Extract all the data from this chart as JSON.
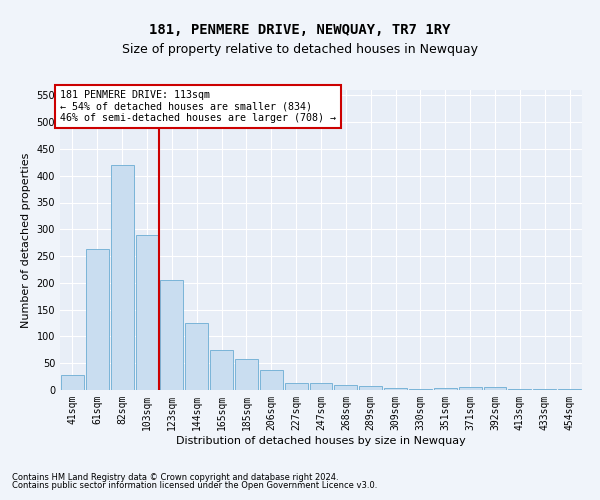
{
  "title": "181, PENMERE DRIVE, NEWQUAY, TR7 1RY",
  "subtitle": "Size of property relative to detached houses in Newquay",
  "xlabel": "Distribution of detached houses by size in Newquay",
  "ylabel": "Number of detached properties",
  "footnote1": "Contains HM Land Registry data © Crown copyright and database right 2024.",
  "footnote2": "Contains public sector information licensed under the Open Government Licence v3.0.",
  "categories": [
    "41sqm",
    "61sqm",
    "82sqm",
    "103sqm",
    "123sqm",
    "144sqm",
    "165sqm",
    "185sqm",
    "206sqm",
    "227sqm",
    "247sqm",
    "268sqm",
    "289sqm",
    "309sqm",
    "330sqm",
    "351sqm",
    "371sqm",
    "392sqm",
    "413sqm",
    "433sqm",
    "454sqm"
  ],
  "values": [
    28,
    263,
    420,
    290,
    206,
    125,
    75,
    58,
    37,
    13,
    13,
    9,
    7,
    4,
    2,
    4,
    6,
    5,
    2,
    2,
    2
  ],
  "bar_color": "#c9ddf0",
  "bar_edge_color": "#7ab4d8",
  "marker_bin_index": 3,
  "marker_line_color": "#cc0000",
  "annotation_line1": "181 PENMERE DRIVE: 113sqm",
  "annotation_line2": "← 54% of detached houses are smaller (834)",
  "annotation_line3": "46% of semi-detached houses are larger (708) →",
  "annotation_box_facecolor": "#ffffff",
  "annotation_box_edgecolor": "#cc0000",
  "ylim": [
    0,
    560
  ],
  "yticks": [
    0,
    50,
    100,
    150,
    200,
    250,
    300,
    350,
    400,
    450,
    500,
    550
  ],
  "plot_bg_color": "#e8eef7",
  "fig_bg_color": "#f0f4fa",
  "grid_color": "#ffffff",
  "title_fontsize": 10,
  "subtitle_fontsize": 9,
  "xlabel_fontsize": 8,
  "ylabel_fontsize": 8,
  "tick_fontsize": 7,
  "footnote_fontsize": 6
}
